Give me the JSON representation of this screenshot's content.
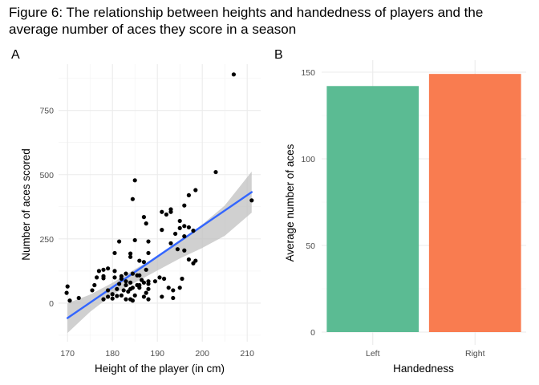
{
  "figure": {
    "title": "Figure 6: The relationship between heights and handedness of players and the average number of aces they score in a season"
  },
  "chart_data": [
    {
      "type": "scatter",
      "panel_label": "A",
      "xlabel": "Height of the player (in cm)",
      "ylabel": "Number of aces scored",
      "xlim": [
        168,
        213
      ],
      "ylim": [
        -150,
        930
      ],
      "x_ticks": [
        170,
        180,
        190,
        200,
        210
      ],
      "y_ticks": [
        0,
        250,
        500,
        750
      ],
      "grid": true,
      "point_color": "#000000",
      "trend_color": "#3366FF",
      "band_color": "#BEBEBE",
      "trend_line": {
        "x": [
          170,
          211
        ],
        "y": [
          -58,
          432
        ]
      },
      "confidence_band": {
        "x": [
          170,
          175,
          180,
          185,
          190,
          195,
          200,
          205,
          211
        ],
        "upper": [
          0,
          33,
          79,
          132,
          183,
          240,
          306,
          380,
          512
        ],
        "lower": [
          -116,
          -34,
          33,
          80,
          127,
          174,
          215,
          262,
          352
        ]
      },
      "points": [
        [
          207,
          890
        ],
        [
          203,
          510
        ],
        [
          211,
          400
        ],
        [
          198.5,
          440
        ],
        [
          197,
          420
        ],
        [
          196,
          380
        ],
        [
          185,
          478
        ],
        [
          184.5,
          405
        ],
        [
          187,
          335
        ],
        [
          187.5,
          310
        ],
        [
          191,
          355
        ],
        [
          192,
          345
        ],
        [
          193,
          365
        ],
        [
          193,
          355
        ],
        [
          195,
          320
        ],
        [
          196,
          300
        ],
        [
          197,
          295
        ],
        [
          198,
          282
        ],
        [
          196,
          260
        ],
        [
          195,
          292
        ],
        [
          194,
          270
        ],
        [
          191,
          285
        ],
        [
          185,
          245
        ],
        [
          188,
          240
        ],
        [
          181.5,
          240
        ],
        [
          180.5,
          195
        ],
        [
          184,
          193
        ],
        [
          188,
          195
        ],
        [
          193,
          233
        ],
        [
          194.5,
          210
        ],
        [
          196,
          205
        ],
        [
          197,
          170
        ],
        [
          198,
          155
        ],
        [
          198.5,
          165
        ],
        [
          187,
          160
        ],
        [
          186,
          165
        ],
        [
          187.5,
          130
        ],
        [
          184,
          180
        ],
        [
          183,
          115
        ],
        [
          182,
          95
        ],
        [
          183,
          85
        ],
        [
          178,
          130
        ],
        [
          179,
          135
        ],
        [
          180.5,
          125
        ],
        [
          177,
          125
        ],
        [
          178,
          105
        ],
        [
          178,
          97
        ],
        [
          182,
          105
        ],
        [
          184.5,
          115
        ],
        [
          185.5,
          108
        ],
        [
          186,
          108
        ],
        [
          186.5,
          90
        ],
        [
          187,
          80
        ],
        [
          188,
          75
        ],
        [
          188,
          85
        ],
        [
          190.5,
          100
        ],
        [
          191.5,
          95
        ],
        [
          192.5,
          60
        ],
        [
          195.5,
          95
        ],
        [
          195,
          60
        ],
        [
          193.5,
          50
        ],
        [
          193.5,
          20
        ],
        [
          191,
          25
        ],
        [
          188,
          55
        ],
        [
          187.5,
          40
        ],
        [
          186,
          70
        ],
        [
          185.5,
          70
        ],
        [
          184,
          80
        ],
        [
          184.5,
          60
        ],
        [
          184,
          55
        ],
        [
          183.5,
          45
        ],
        [
          183,
          70
        ],
        [
          182.5,
          50
        ],
        [
          182,
          30
        ],
        [
          181.5,
          75
        ],
        [
          181,
          55
        ],
        [
          180,
          35
        ],
        [
          179,
          50
        ],
        [
          179,
          25
        ],
        [
          178,
          15
        ],
        [
          180,
          18
        ],
        [
          181,
          28
        ],
        [
          185,
          30
        ],
        [
          187,
          25
        ],
        [
          188,
          15
        ],
        [
          184.5,
          10
        ],
        [
          183,
          15
        ],
        [
          176,
          70
        ],
        [
          175.5,
          50
        ],
        [
          172.5,
          20
        ],
        [
          170,
          65
        ],
        [
          169.8,
          40
        ],
        [
          170.5,
          10
        ],
        [
          180.5,
          100
        ],
        [
          186,
          60
        ],
        [
          189.5,
          85
        ],
        [
          184,
          15
        ],
        [
          176.5,
          100
        ]
      ]
    },
    {
      "type": "bar",
      "panel_label": "B",
      "xlabel": "Handedness",
      "ylabel": "Average number of aces",
      "categories": [
        "Left",
        "Right"
      ],
      "values": [
        142,
        149
      ],
      "colors": [
        "#5BBB93",
        "#F97C50"
      ],
      "ylim": [
        0,
        150
      ],
      "y_ticks": [
        0,
        50,
        100,
        150
      ],
      "grid": true
    }
  ]
}
